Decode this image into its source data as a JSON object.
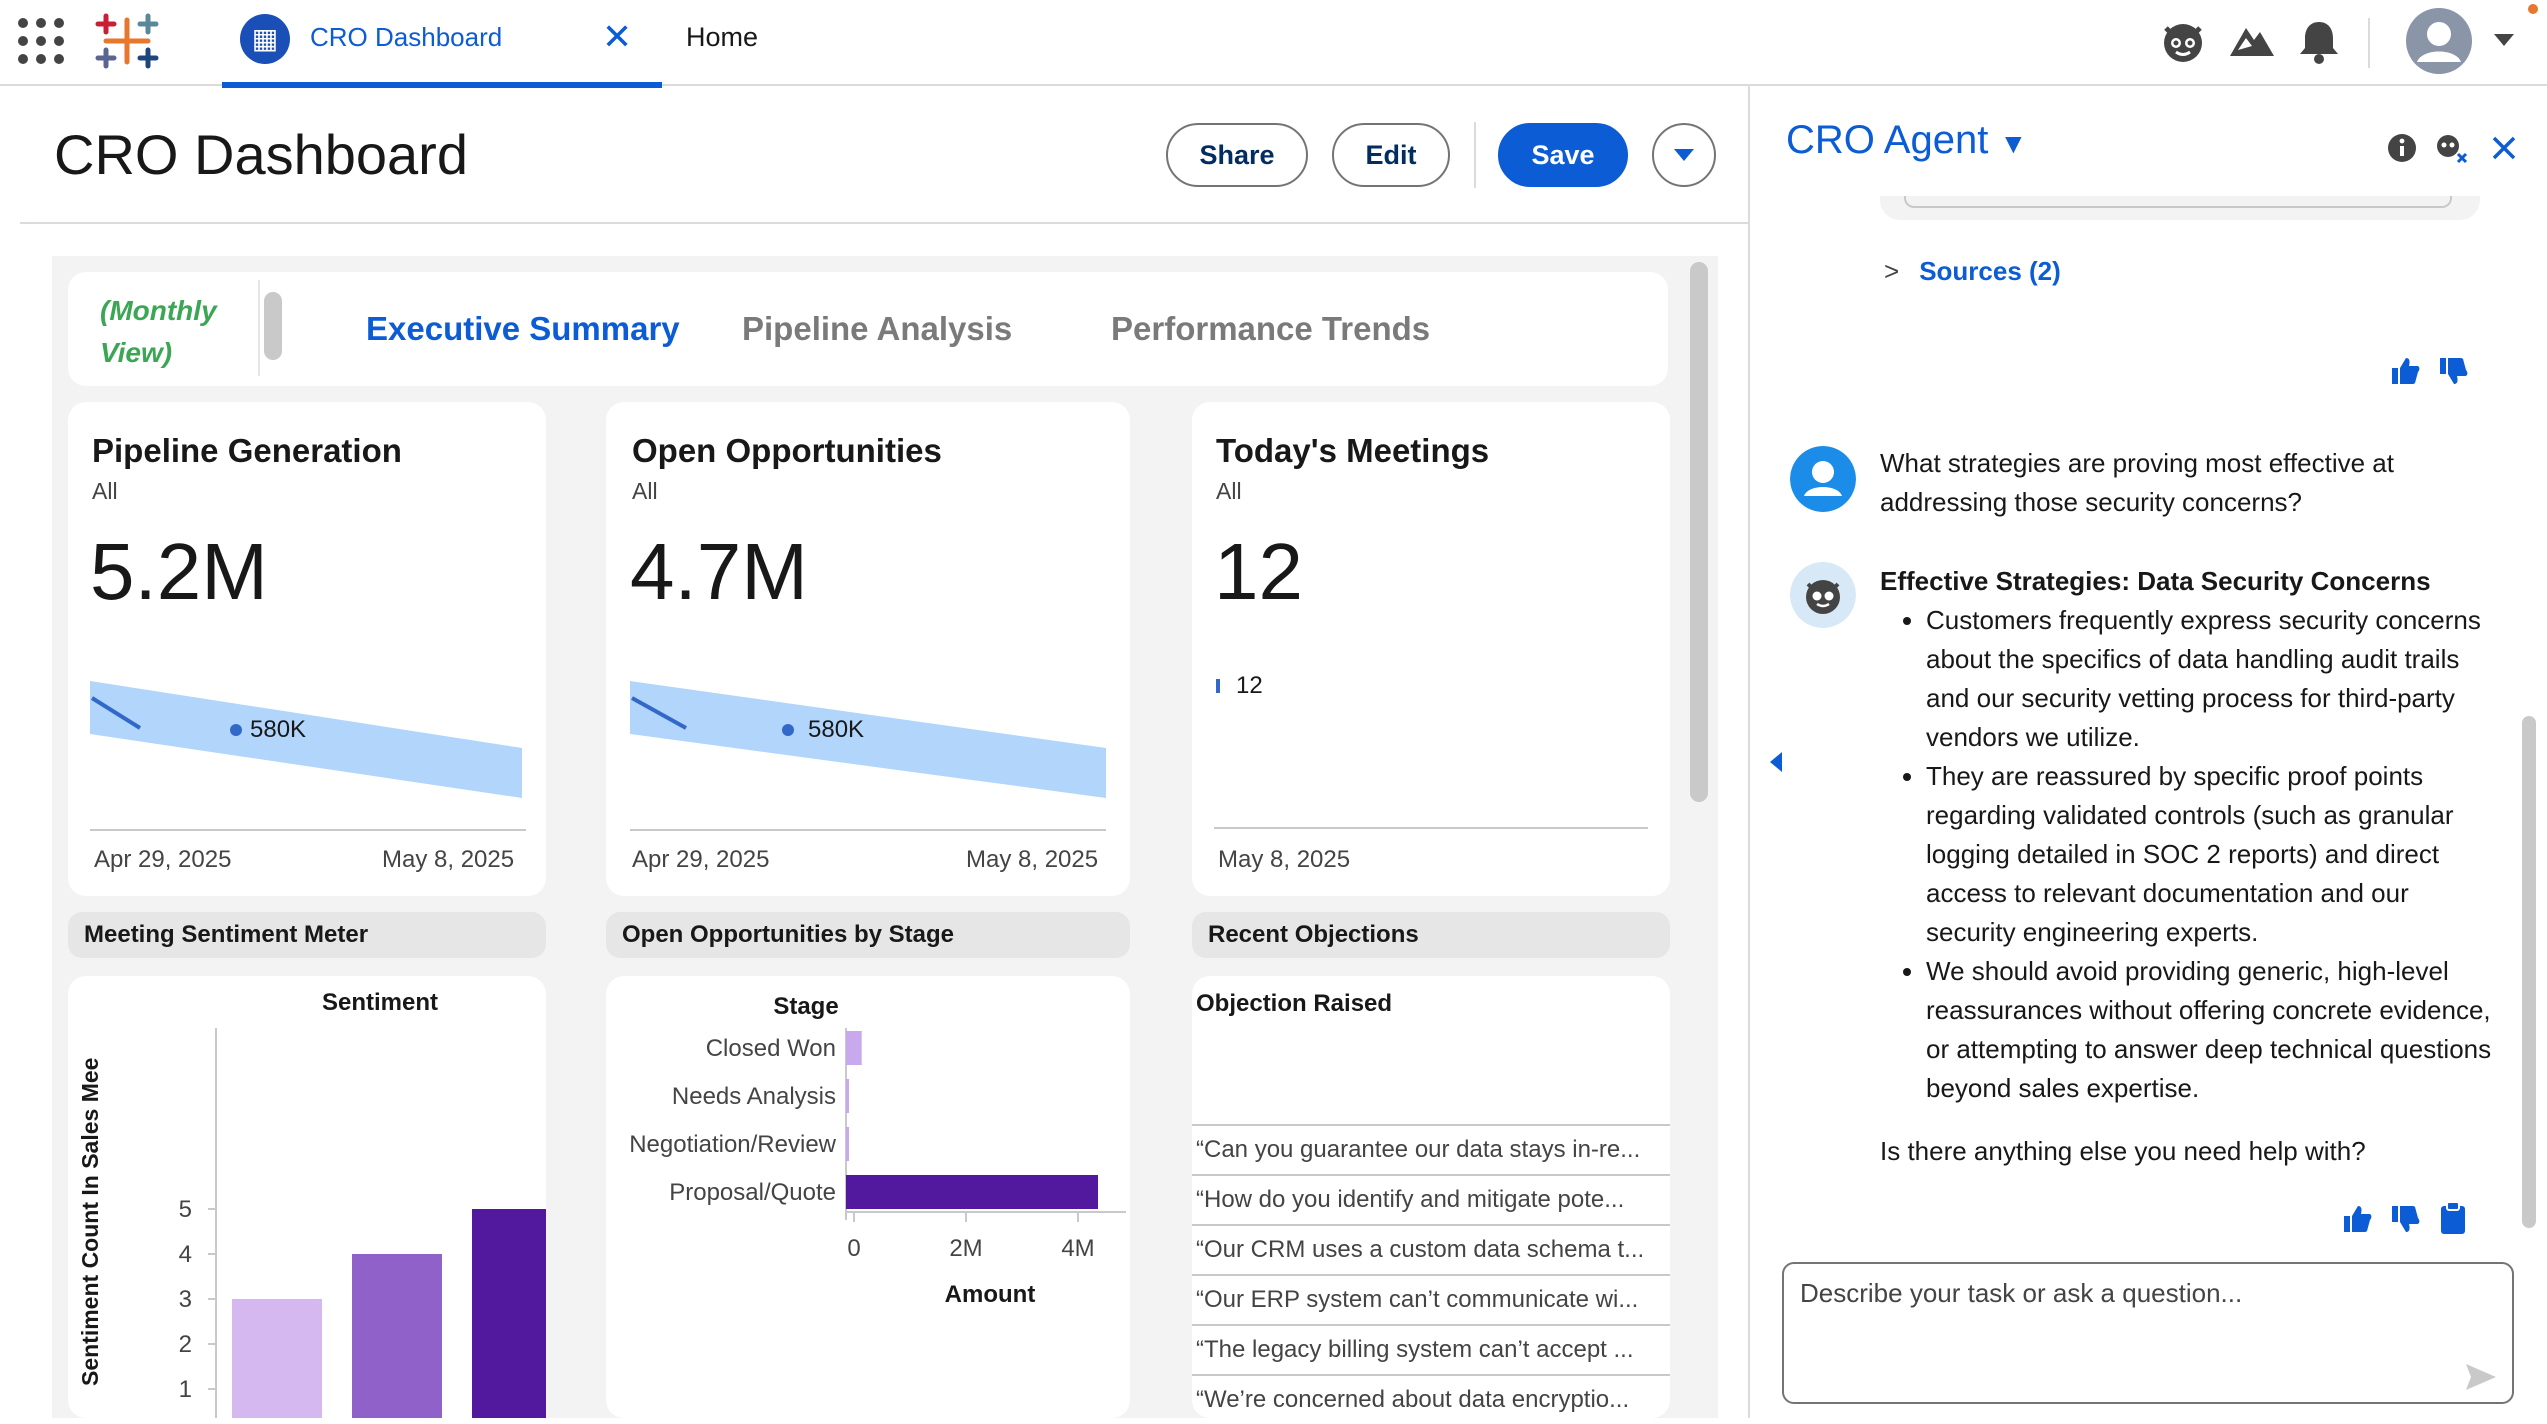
{
  "topbar": {
    "app_tab_label": "CRO Dashboard",
    "home_tab_label": "Home",
    "icons": [
      "app-launcher-icon",
      "tableau-logo-icon",
      "agent-icon",
      "trailhead-icon",
      "bell-icon",
      "user-avatar-icon",
      "chevron-down-icon"
    ]
  },
  "header": {
    "title": "CRO Dashboard",
    "share_label": "Share",
    "edit_label": "Edit",
    "save_label": "Save"
  },
  "tabs": {
    "view_label": "(Monthly View)",
    "items": [
      "Executive Summary",
      "Pipeline Analysis",
      "Performance Trends"
    ],
    "active": "Executive Summary"
  },
  "kpis": [
    {
      "title": "Pipeline Generation",
      "filter": "All",
      "value": "5.2M",
      "band_label": "580K",
      "start_date": "Apr 29, 2025",
      "end_date": "May 8, 2025"
    },
    {
      "title": "Open Opportunities",
      "filter": "All",
      "value": "4.7M",
      "band_label": "580K",
      "start_date": "Apr 29, 2025",
      "end_date": "May 8, 2025"
    },
    {
      "title": "Today's Meetings",
      "filter": "All",
      "value": "12",
      "band_label": "12",
      "end_date": "May 8, 2025"
    }
  ],
  "sections": {
    "sentiment": "Meeting Sentiment Meter",
    "stage": "Open Opportunities by Stage",
    "objections": "Recent Objections"
  },
  "chart_data": [
    {
      "type": "bar",
      "title": "Sentiment",
      "ylabel": "Sentiment Count In Sales Mee",
      "yticks": [
        1,
        2,
        3,
        4,
        5
      ],
      "values": [
        3,
        4,
        5
      ],
      "colors": [
        "#d5b8f0",
        "#9061c8",
        "#52189e"
      ]
    },
    {
      "type": "bar",
      "orientation": "horizontal",
      "title": "Stage",
      "xlabel": "Amount",
      "categories": [
        "Closed Won",
        "Needs Analysis",
        "Negotiation/Review",
        "Proposal/Quote"
      ],
      "values": [
        280000,
        30000,
        30000,
        4500000
      ],
      "xticks": [
        "0",
        "2M",
        "4M"
      ],
      "xlim": [
        0,
        5000000
      ]
    }
  ],
  "objections": {
    "header": "Objection Raised",
    "rows": [
      "“Can you guarantee our data stays in-re...",
      "“How do you identify and mitigate pote...",
      "“Our CRM uses a custom data schema t...",
      "“Our ERP system can’t communicate wi...",
      "“The legacy billing system can’t accept ...",
      "“We’re concerned about data encryptio..."
    ]
  },
  "agent": {
    "title": "CRO Agent",
    "sources_label": "Sources (2)",
    "user_question": "What strategies are proving most effective at addressing those security concerns?",
    "response_heading": "Effective Strategies: Data Security Concerns",
    "response_bullets": [
      "Customers frequently express security concerns about the specifics of data handling audit trails and our security vetting process for third-party vendors we utilize.",
      "They are reassured by specific proof points regarding validated controls (such as granular logging detailed in SOC 2 reports) and direct access to relevant documentation and our security engineering experts.",
      "We should avoid providing generic, high-level reassurances without offering concrete evidence, or attempting to answer deep technical questions beyond sales expertise."
    ],
    "followup": "Is there anything else you need help with?",
    "input_placeholder": "Describe your task or ask a question..."
  }
}
